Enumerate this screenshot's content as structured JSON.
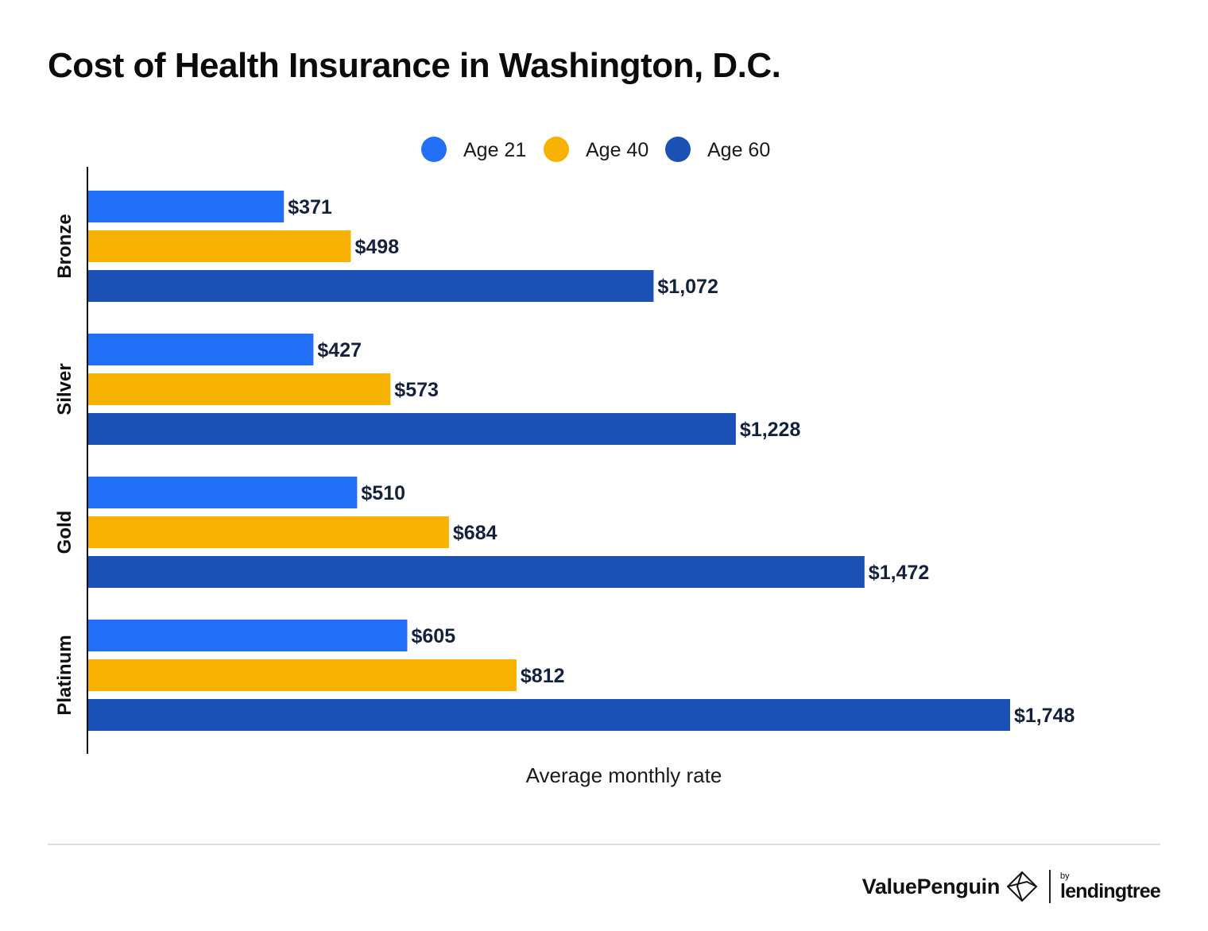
{
  "title": "Cost of Health Insurance in Washington, D.C.",
  "chart_data": {
    "type": "bar",
    "orientation": "horizontal",
    "title": "Cost of Health Insurance in Washington, D.C.",
    "xlabel": "Average monthly rate",
    "ylabel": "",
    "categories": [
      "Bronze",
      "Silver",
      "Gold",
      "Platinum"
    ],
    "series": [
      {
        "name": "Age 21",
        "color": "#2370f8",
        "values": [
          371,
          427,
          510,
          605
        ],
        "labels": [
          "$371",
          "$427",
          "$510",
          "$605"
        ]
      },
      {
        "name": "Age 40",
        "color": "#f8b204",
        "values": [
          498,
          573,
          684,
          812
        ],
        "labels": [
          "$498",
          "$573",
          "$684",
          "$812"
        ]
      },
      {
        "name": "Age 60",
        "color": "#1b50b4",
        "values": [
          1072,
          1228,
          1472,
          1748
        ],
        "labels": [
          "$1,072",
          "$1,228",
          "$1,472",
          "$1,748"
        ]
      }
    ],
    "xlim": [
      0,
      1748
    ],
    "grid": false,
    "legend": "top-center"
  },
  "brand": {
    "name": "ValuePenguin",
    "by": "by",
    "partner": "lendingtree"
  }
}
